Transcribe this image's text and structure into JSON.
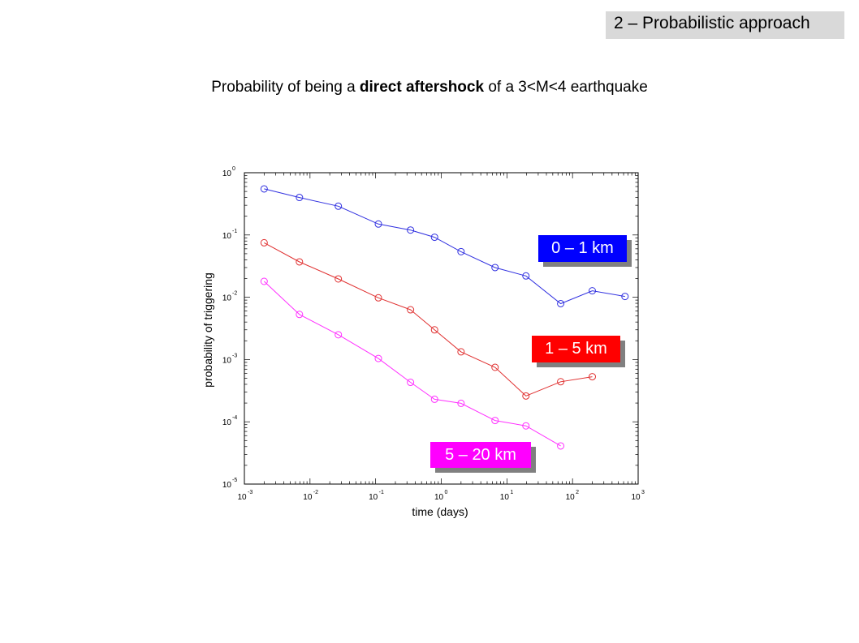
{
  "section_tab": {
    "label": "2 – Probabilistic approach"
  },
  "title": {
    "prefix": "Probability of being a ",
    "emphasis": "direct aftershock",
    "suffix": " of a 3<M<4 earthquake"
  },
  "chart_data": {
    "type": "line",
    "xscale": "log",
    "yscale": "log",
    "xlabel": "time (days)",
    "ylabel": "probability of triggering",
    "xlim": [
      0.001,
      1000
    ],
    "ylim": [
      1e-05,
      1
    ],
    "x_ticks": [
      {
        "base": "10",
        "exp": "-3",
        "value": 0.001
      },
      {
        "base": "10",
        "exp": "-2",
        "value": 0.01
      },
      {
        "base": "10",
        "exp": "-1",
        "value": 0.1
      },
      {
        "base": "10",
        "exp": "0",
        "value": 1
      },
      {
        "base": "10",
        "exp": "1",
        "value": 10
      },
      {
        "base": "10",
        "exp": "2",
        "value": 100
      },
      {
        "base": "10",
        "exp": "3",
        "value": 1000
      }
    ],
    "y_ticks": [
      {
        "base": "10",
        "exp": "0",
        "value": 1
      },
      {
        "base": "10",
        "exp": "-1",
        "value": 0.1
      },
      {
        "base": "10",
        "exp": "-2",
        "value": 0.01
      },
      {
        "base": "10",
        "exp": "-3",
        "value": 0.001
      },
      {
        "base": "10",
        "exp": "-4",
        "value": 0.0001
      },
      {
        "base": "10",
        "exp": "-5",
        "value": 1e-05
      }
    ],
    "grid": false,
    "series": [
      {
        "name": "0 – 1 km",
        "color": "#3030e0",
        "label_bg": "#0000ff",
        "x": [
          0.002,
          0.0069,
          0.027,
          0.11,
          0.34,
          0.79,
          2.0,
          6.6,
          19.5,
          66,
          200,
          630
        ],
        "y": [
          0.55,
          0.4,
          0.29,
          0.15,
          0.12,
          0.092,
          0.054,
          0.03,
          0.022,
          0.0079,
          0.0127,
          0.0103
        ]
      },
      {
        "name": "1 – 5 km",
        "color": "#e03030",
        "label_bg": "#ff0000",
        "x": [
          0.002,
          0.0069,
          0.027,
          0.11,
          0.34,
          0.79,
          2.0,
          6.6,
          19.5,
          66,
          200
        ],
        "y": [
          0.075,
          0.037,
          0.0197,
          0.0098,
          0.0063,
          0.003,
          0.00133,
          0.00075,
          0.00026,
          0.00044,
          0.00053
        ]
      },
      {
        "name": "5 – 20 km",
        "color": "#ff30ff",
        "label_bg": "#ff00ff",
        "x": [
          0.002,
          0.0069,
          0.027,
          0.11,
          0.34,
          0.79,
          2.0,
          6.6,
          19.5,
          66
        ],
        "y": [
          0.018,
          0.0053,
          0.0025,
          0.00104,
          0.00043,
          0.00023,
          0.000198,
          0.000105,
          8.6e-05,
          4.1e-05
        ]
      }
    ]
  }
}
